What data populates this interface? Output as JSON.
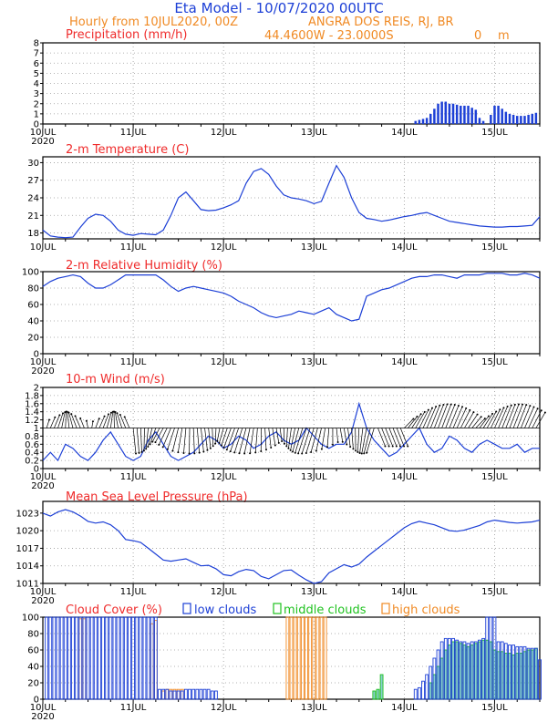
{
  "header": {
    "title": "Eta Model - 10/07/2020 00UTC",
    "subtitle_left": "Hourly from 10JUL2020, 00Z",
    "station": "ANGRA DOS REIS, RJ, BR",
    "coords": "44.4600W - 23.0000S",
    "elevation": "0",
    "elevation_unit": "m"
  },
  "x_axis": {
    "labels": [
      "10JUL",
      "11JUL",
      "12JUL",
      "13JUL",
      "14JUL",
      "15JUL"
    ],
    "year": "2020",
    "hours_total": 132
  },
  "colors": {
    "blue": "#1c3fd6",
    "red": "#ef2b2b",
    "orange": "#f08a24",
    "green": "#1fc21f",
    "teal": "#2aa8a8"
  },
  "chart_data": [
    {
      "type": "bar",
      "id": "precip",
      "title": "Precipitation (mm/h)",
      "ylim": [
        0,
        8
      ],
      "yticks": [
        "0",
        "1",
        "2",
        "3",
        "4",
        "5",
        "6",
        "7",
        "8"
      ],
      "x_hours": [
        99,
        100,
        101,
        102,
        103,
        104,
        105,
        106,
        107,
        108,
        109,
        110,
        111,
        112,
        113,
        114,
        115,
        116,
        117,
        118,
        119,
        120,
        121,
        122,
        123,
        124,
        125,
        126,
        127,
        128,
        129,
        130,
        131
      ],
      "values": [
        0.3,
        0.4,
        0.5,
        0.6,
        1.0,
        1.5,
        2.0,
        2.2,
        2.2,
        2.0,
        2.0,
        1.9,
        1.8,
        1.8,
        1.8,
        1.6,
        1.4,
        0.6,
        0.3,
        0.0,
        0.9,
        1.8,
        1.8,
        1.5,
        1.2,
        1.0,
        0.9,
        0.8,
        0.8,
        0.8,
        0.9,
        1.0,
        1.1
      ]
    },
    {
      "type": "line",
      "id": "temp",
      "title": "2-m Temperature (C)",
      "ylim": [
        17,
        31
      ],
      "yticks": [
        "18",
        "21",
        "24",
        "27",
        "30"
      ],
      "x": [
        0,
        2,
        4,
        6,
        8,
        10,
        12,
        14,
        16,
        18,
        20,
        22,
        24,
        26,
        28,
        30,
        32,
        34,
        36,
        38,
        40,
        42,
        44,
        46,
        48,
        50,
        52,
        54,
        56,
        58,
        60,
        62,
        64,
        66,
        68,
        70,
        72,
        74,
        76,
        78,
        80,
        82,
        84,
        86,
        88,
        90,
        92,
        94,
        96,
        98,
        100,
        102,
        104,
        106,
        108,
        110,
        112,
        114,
        116,
        118,
        120,
        122,
        124,
        126,
        128,
        130,
        132
      ],
      "values": [
        18.5,
        17.5,
        17.3,
        17.2,
        17.3,
        19.0,
        20.5,
        21.2,
        21.0,
        20.0,
        18.5,
        17.8,
        17.6,
        17.9,
        17.8,
        17.7,
        18.5,
        21.0,
        24.0,
        25.0,
        23.5,
        22.0,
        21.8,
        21.9,
        22.3,
        22.8,
        23.5,
        26.5,
        28.5,
        29.0,
        28.0,
        26.0,
        24.5,
        24.0,
        23.8,
        23.5,
        23.0,
        23.4,
        26.5,
        29.5,
        27.5,
        24.0,
        21.5,
        20.5,
        20.3,
        20.0,
        20.2,
        20.5,
        20.8,
        21.0,
        21.3,
        21.5,
        21.0,
        20.5,
        20.0,
        19.8,
        19.6,
        19.4,
        19.2,
        19.1,
        19.0,
        19.0,
        19.1,
        19.1,
        19.2,
        19.3,
        20.8
      ]
    },
    {
      "type": "line",
      "id": "rh",
      "title": "2-m Relative Humidity (%)",
      "ylim": [
        0,
        100
      ],
      "yticks": [
        "0",
        "20",
        "40",
        "60",
        "80",
        "100"
      ],
      "x": [
        0,
        2,
        4,
        6,
        8,
        10,
        12,
        14,
        16,
        18,
        20,
        22,
        24,
        26,
        28,
        30,
        32,
        34,
        36,
        38,
        40,
        42,
        44,
        46,
        48,
        50,
        52,
        54,
        56,
        58,
        60,
        62,
        64,
        66,
        68,
        70,
        72,
        74,
        76,
        78,
        80,
        82,
        84,
        86,
        88,
        90,
        92,
        94,
        96,
        98,
        100,
        102,
        104,
        106,
        108,
        110,
        112,
        114,
        116,
        118,
        120,
        122,
        124,
        126,
        128,
        130,
        132
      ],
      "values": [
        82,
        88,
        92,
        94,
        96,
        94,
        86,
        80,
        80,
        84,
        90,
        96,
        96,
        96,
        96,
        96,
        90,
        82,
        76,
        80,
        82,
        80,
        78,
        76,
        74,
        70,
        64,
        60,
        56,
        50,
        46,
        44,
        46,
        48,
        52,
        50,
        48,
        52,
        56,
        48,
        44,
        40,
        42,
        70,
        74,
        78,
        80,
        84,
        88,
        92,
        94,
        94,
        96,
        96,
        94,
        92,
        96,
        96,
        96,
        98,
        98,
        98,
        96,
        96,
        98,
        96,
        92
      ]
    },
    {
      "type": "line",
      "id": "wind",
      "title": "10-m Wind (m/s)",
      "ylim": [
        0,
        2
      ],
      "yticks": [
        "0",
        "0.2",
        "0.4",
        "0.6",
        "0.8",
        "1",
        "1.2",
        "1.4",
        "1.6",
        "1.8",
        "2"
      ],
      "x": [
        0,
        2,
        4,
        6,
        8,
        10,
        12,
        14,
        16,
        18,
        20,
        22,
        24,
        26,
        28,
        30,
        32,
        34,
        36,
        38,
        40,
        42,
        44,
        46,
        48,
        50,
        52,
        54,
        56,
        58,
        60,
        62,
        64,
        66,
        68,
        70,
        72,
        74,
        76,
        78,
        80,
        82,
        84,
        86,
        88,
        90,
        92,
        94,
        96,
        98,
        100,
        102,
        104,
        106,
        108,
        110,
        112,
        114,
        116,
        118,
        120,
        122,
        124,
        126,
        128,
        130,
        132
      ],
      "values": [
        0.2,
        0.4,
        0.2,
        0.6,
        0.5,
        0.3,
        0.2,
        0.4,
        0.7,
        0.9,
        0.6,
        0.3,
        0.2,
        0.3,
        0.7,
        0.9,
        0.6,
        0.3,
        0.2,
        0.3,
        0.4,
        0.6,
        0.8,
        0.7,
        0.5,
        0.6,
        0.8,
        0.7,
        0.5,
        0.6,
        0.8,
        0.9,
        0.7,
        0.6,
        0.7,
        1.0,
        0.8,
        0.6,
        0.5,
        0.6,
        0.6,
        0.9,
        1.6,
        1.0,
        0.7,
        0.5,
        0.3,
        0.4,
        0.6,
        0.8,
        1.0,
        0.6,
        0.4,
        0.5,
        0.8,
        0.7,
        0.5,
        0.4,
        0.6,
        0.7,
        0.6,
        0.5,
        0.5,
        0.6,
        0.4,
        0.5,
        0.5
      ]
    },
    {
      "type": "line",
      "id": "mslp",
      "title": "Mean Sea Level Pressure (hPa)",
      "ylim": [
        1011,
        1025
      ],
      "yticks": [
        "1011",
        "1014",
        "1017",
        "1020",
        "1023"
      ],
      "x": [
        0,
        2,
        4,
        6,
        8,
        10,
        12,
        14,
        16,
        18,
        20,
        22,
        24,
        26,
        28,
        30,
        32,
        34,
        36,
        38,
        40,
        42,
        44,
        46,
        48,
        50,
        52,
        54,
        56,
        58,
        60,
        62,
        64,
        66,
        68,
        70,
        72,
        74,
        76,
        78,
        80,
        82,
        84,
        86,
        88,
        90,
        92,
        94,
        96,
        98,
        100,
        102,
        104,
        106,
        108,
        110,
        112,
        114,
        116,
        118,
        120,
        122,
        124,
        126,
        128,
        130,
        132
      ],
      "values": [
        1023.0,
        1022.5,
        1023.2,
        1023.6,
        1023.2,
        1022.5,
        1021.6,
        1021.3,
        1021.5,
        1021.0,
        1020.0,
        1018.5,
        1018.3,
        1018.0,
        1017.0,
        1016.0,
        1015.0,
        1014.8,
        1015.0,
        1015.2,
        1014.6,
        1014.0,
        1014.1,
        1013.5,
        1012.5,
        1012.3,
        1013.0,
        1013.4,
        1013.2,
        1012.2,
        1011.8,
        1012.5,
        1013.2,
        1013.3,
        1012.4,
        1011.6,
        1011.0,
        1011.3,
        1012.8,
        1013.5,
        1014.2,
        1013.8,
        1014.3,
        1015.5,
        1016.5,
        1017.5,
        1018.5,
        1019.5,
        1020.5,
        1021.2,
        1021.6,
        1021.3,
        1021.0,
        1020.5,
        1020.0,
        1019.9,
        1020.1,
        1020.5,
        1020.9,
        1021.5,
        1021.8,
        1021.6,
        1021.4,
        1021.3,
        1021.4,
        1021.5,
        1021.8
      ]
    },
    {
      "type": "bar",
      "id": "clouds",
      "title": "Cloud Cover (%)",
      "ylim": [
        0,
        100
      ],
      "yticks": [
        "0",
        "20",
        "40",
        "60",
        "80",
        "100"
      ],
      "legend": [
        "low clouds",
        "middle clouds",
        "high clouds"
      ],
      "low": {
        "x_hours": [
          1,
          2,
          3,
          4,
          5,
          6,
          7,
          8,
          9,
          10,
          11,
          12,
          13,
          14,
          15,
          16,
          17,
          18,
          19,
          20,
          21,
          22,
          23,
          24,
          25,
          26,
          27,
          28,
          29,
          30,
          31,
          32,
          33,
          34,
          35,
          36,
          37,
          38,
          39,
          40,
          41,
          42,
          43,
          44,
          45,
          46,
          47,
          48,
          96,
          97,
          98,
          99,
          100,
          101,
          102,
          103,
          104,
          105,
          106,
          107,
          108,
          109,
          110,
          111,
          112,
          113,
          114,
          115,
          116,
          117,
          118,
          119,
          120,
          121,
          122,
          123,
          124,
          125,
          126,
          127,
          128,
          129,
          130,
          131,
          132
        ],
        "values": [
          100,
          100,
          100,
          100,
          100,
          100,
          100,
          100,
          100,
          100,
          100,
          100,
          100,
          100,
          100,
          100,
          100,
          100,
          100,
          100,
          100,
          100,
          100,
          100,
          100,
          100,
          100,
          100,
          100,
          100,
          12,
          12,
          12,
          10,
          10,
          10,
          10,
          12,
          12,
          12,
          12,
          12,
          12,
          12,
          10,
          10,
          0,
          0,
          0,
          0,
          0,
          12,
          14,
          22,
          30,
          40,
          50,
          60,
          70,
          74,
          74,
          74,
          72,
          70,
          70,
          68,
          70,
          70,
          72,
          74,
          100,
          100,
          100,
          70,
          70,
          68,
          66,
          66,
          64,
          64,
          64,
          62,
          62,
          62,
          48
        ]
      },
      "middle": {
        "x_hours": [
          88,
          89,
          90,
          103,
          104,
          105,
          106,
          107,
          108,
          109,
          110,
          111,
          112,
          113,
          114,
          115,
          116,
          117,
          118,
          119,
          120,
          121,
          122,
          123,
          124,
          125,
          126,
          127,
          128,
          129,
          130,
          131
        ],
        "values": [
          10,
          12,
          30,
          20,
          30,
          40,
          50,
          60,
          66,
          70,
          70,
          68,
          66,
          64,
          66,
          68,
          70,
          72,
          72,
          70,
          60,
          58,
          58,
          56,
          56,
          54,
          56,
          56,
          58,
          60,
          60,
          62
        ]
      },
      "high": {
        "x_hours": [
          10,
          11,
          29,
          30,
          32,
          33,
          34,
          35,
          36,
          37,
          65,
          66,
          67,
          68,
          69,
          70,
          71,
          72,
          73,
          74,
          75
        ],
        "values": [
          98,
          98,
          92,
          96,
          10,
          12,
          12,
          12,
          12,
          12,
          100,
          100,
          100,
          100,
          100,
          100,
          100,
          100,
          100,
          100,
          100
        ]
      }
    }
  ]
}
